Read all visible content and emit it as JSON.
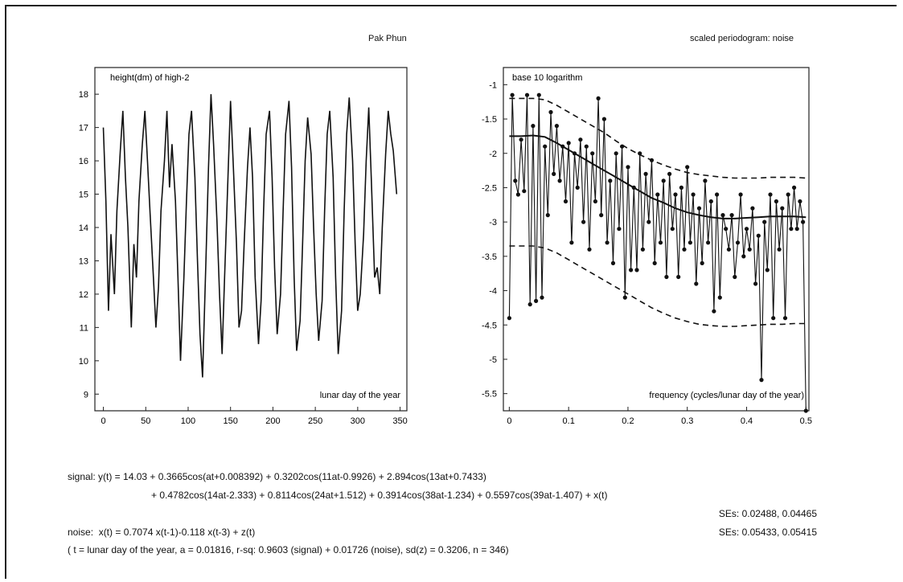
{
  "header": {
    "left_title": "Pak Phun",
    "right_title": "scaled periodogram: noise"
  },
  "chart_data": [
    {
      "type": "line",
      "inner_label": "height(dm) of high-2",
      "xlabel": "lunar day of the year",
      "ylabel": "",
      "xlim": [
        -10,
        358
      ],
      "ylim": [
        8.5,
        18.8
      ],
      "xticks": [
        0,
        50,
        100,
        150,
        200,
        250,
        300,
        350
      ],
      "yticks": [
        9,
        10,
        11,
        12,
        13,
        14,
        15,
        16,
        17,
        18
      ],
      "grid": false,
      "series": [
        {
          "x": [
            0,
            3,
            6,
            9,
            13,
            16,
            20,
            23,
            26,
            29,
            33,
            36,
            39,
            42,
            46,
            49,
            52,
            55,
            59,
            62,
            65,
            68,
            72,
            75,
            78,
            81,
            85,
            88,
            91,
            95,
            98,
            101,
            104,
            108,
            111,
            114,
            117,
            121,
            124,
            127,
            130,
            134,
            137,
            140,
            143,
            147,
            150,
            153,
            157,
            160,
            163,
            166,
            170,
            173,
            176,
            179,
            183,
            186,
            189,
            192,
            196,
            199,
            202,
            205,
            209,
            212,
            215,
            219,
            222,
            225,
            228,
            232,
            235,
            238,
            241,
            245,
            248,
            251,
            254,
            258,
            261,
            264,
            267,
            271,
            274,
            277,
            281,
            284,
            287,
            290,
            294,
            297,
            300,
            303,
            307,
            310,
            313,
            316,
            320,
            323,
            326,
            329,
            333,
            336,
            339,
            342,
            346
          ],
          "y": [
            17.0,
            14.8,
            11.5,
            13.8,
            12.0,
            14.5,
            16.3,
            17.5,
            15.5,
            14.0,
            11.0,
            13.5,
            12.5,
            14.8,
            16.5,
            17.5,
            16.0,
            14.5,
            12.5,
            11.0,
            12.2,
            14.5,
            16.0,
            17.5,
            15.2,
            16.5,
            14.8,
            12.5,
            10.0,
            12.5,
            14.8,
            16.8,
            17.5,
            15.5,
            13.0,
            10.8,
            9.5,
            13.0,
            15.8,
            18.0,
            16.5,
            14.2,
            12.0,
            10.2,
            12.5,
            15.5,
            17.8,
            16.0,
            13.5,
            11.0,
            11.5,
            13.5,
            15.8,
            17.0,
            15.5,
            12.5,
            10.5,
            11.8,
            14.5,
            16.8,
            17.5,
            15.5,
            12.8,
            10.8,
            12.0,
            14.5,
            16.8,
            17.8,
            15.8,
            12.5,
            10.3,
            11.2,
            13.5,
            16.0,
            17.3,
            16.2,
            14.0,
            12.0,
            10.6,
            11.8,
            14.5,
            16.8,
            17.5,
            15.5,
            12.5,
            10.2,
            11.5,
            14.5,
            16.8,
            17.9,
            16.0,
            13.5,
            11.5,
            12.0,
            13.8,
            16.0,
            17.6,
            15.5,
            12.5,
            12.8,
            12.0,
            14.0,
            16.2,
            17.5,
            16.8,
            16.3,
            15.0
          ]
        }
      ]
    },
    {
      "type": "line",
      "inner_label": "base 10 logarithm",
      "xlabel": "frequency (cycles/lunar day of the year)",
      "ylabel": "",
      "xlim": [
        -0.01,
        0.505
      ],
      "ylim": [
        -5.75,
        -0.75
      ],
      "xticks": [
        0,
        0.1,
        0.2,
        0.3,
        0.4,
        0.5
      ],
      "xtick_labels": [
        "0",
        "0.1",
        "0.2",
        "0.3",
        "0.4",
        "0.5"
      ],
      "yticks": [
        -1,
        -1.5,
        -2,
        -2.5,
        -3,
        -3.5,
        -4,
        -4.5,
        -5,
        -5.5
      ],
      "grid": false,
      "series": [
        {
          "style": "markers-line",
          "x": [
            0,
            0.005,
            0.01,
            0.015,
            0.02,
            0.025,
            0.03,
            0.035,
            0.04,
            0.045,
            0.05,
            0.055,
            0.06,
            0.065,
            0.07,
            0.075,
            0.08,
            0.085,
            0.09,
            0.095,
            0.1,
            0.105,
            0.11,
            0.115,
            0.12,
            0.125,
            0.13,
            0.135,
            0.14,
            0.145,
            0.15,
            0.155,
            0.16,
            0.165,
            0.17,
            0.175,
            0.18,
            0.185,
            0.19,
            0.195,
            0.2,
            0.205,
            0.21,
            0.215,
            0.22,
            0.225,
            0.23,
            0.235,
            0.24,
            0.245,
            0.25,
            0.255,
            0.26,
            0.265,
            0.27,
            0.275,
            0.28,
            0.285,
            0.29,
            0.295,
            0.3,
            0.305,
            0.31,
            0.315,
            0.32,
            0.325,
            0.33,
            0.335,
            0.34,
            0.345,
            0.35,
            0.355,
            0.36,
            0.365,
            0.37,
            0.375,
            0.38,
            0.385,
            0.39,
            0.395,
            0.4,
            0.405,
            0.41,
            0.415,
            0.42,
            0.425,
            0.43,
            0.435,
            0.44,
            0.445,
            0.45,
            0.455,
            0.46,
            0.465,
            0.47,
            0.475,
            0.48,
            0.485,
            0.49,
            0.495,
            0.5
          ],
          "y": [
            -4.4,
            -1.15,
            -2.4,
            -2.6,
            -1.8,
            -2.55,
            -1.15,
            -4.2,
            -1.6,
            -4.15,
            -1.15,
            -4.1,
            -1.9,
            -2.9,
            -1.4,
            -2.3,
            -1.6,
            -2.4,
            -1.9,
            -2.7,
            -1.85,
            -3.3,
            -2.0,
            -2.5,
            -1.8,
            -3.0,
            -1.9,
            -3.4,
            -2.0,
            -2.7,
            -1.2,
            -2.9,
            -1.5,
            -3.3,
            -2.4,
            -3.6,
            -2.0,
            -3.1,
            -1.9,
            -4.1,
            -2.2,
            -3.7,
            -2.5,
            -3.7,
            -2.0,
            -3.4,
            -2.3,
            -3.0,
            -2.1,
            -3.6,
            -2.6,
            -3.3,
            -2.4,
            -3.8,
            -2.3,
            -3.1,
            -2.6,
            -3.8,
            -2.5,
            -3.4,
            -2.2,
            -3.3,
            -2.6,
            -3.9,
            -2.8,
            -3.6,
            -2.4,
            -3.3,
            -2.7,
            -4.3,
            -2.6,
            -4.1,
            -2.9,
            -3.1,
            -3.4,
            -2.9,
            -3.8,
            -3.3,
            -2.6,
            -3.5,
            -3.1,
            -3.4,
            -2.8,
            -3.9,
            -3.2,
            -5.3,
            -3.0,
            -3.7,
            -2.6,
            -4.4,
            -2.7,
            -3.4,
            -2.8,
            -4.4,
            -2.6,
            -3.1,
            -2.5,
            -3.1,
            -2.7,
            -3.0,
            -5.75
          ]
        },
        {
          "style": "solid",
          "x": [
            0,
            0.02,
            0.04,
            0.06,
            0.08,
            0.1,
            0.12,
            0.14,
            0.16,
            0.18,
            0.2,
            0.22,
            0.24,
            0.26,
            0.28,
            0.3,
            0.32,
            0.34,
            0.36,
            0.38,
            0.4,
            0.42,
            0.44,
            0.46,
            0.48,
            0.5
          ],
          "y": [
            -1.75,
            -1.75,
            -1.74,
            -1.76,
            -1.85,
            -1.95,
            -2.05,
            -2.15,
            -2.25,
            -2.35,
            -2.45,
            -2.55,
            -2.65,
            -2.72,
            -2.8,
            -2.86,
            -2.9,
            -2.93,
            -2.95,
            -2.95,
            -2.94,
            -2.93,
            -2.92,
            -2.92,
            -2.92,
            -2.93
          ]
        },
        {
          "style": "dashed",
          "x": [
            0,
            0.02,
            0.04,
            0.06,
            0.08,
            0.1,
            0.12,
            0.14,
            0.16,
            0.18,
            0.2,
            0.22,
            0.24,
            0.26,
            0.28,
            0.3,
            0.32,
            0.34,
            0.36,
            0.38,
            0.4,
            0.42,
            0.44,
            0.46,
            0.48,
            0.5
          ],
          "y": [
            -1.2,
            -1.2,
            -1.2,
            -1.22,
            -1.3,
            -1.4,
            -1.5,
            -1.6,
            -1.7,
            -1.82,
            -1.93,
            -2.02,
            -2.1,
            -2.17,
            -2.23,
            -2.28,
            -2.31,
            -2.33,
            -2.35,
            -2.36,
            -2.36,
            -2.36,
            -2.35,
            -2.35,
            -2.35,
            -2.36
          ]
        },
        {
          "style": "dashed",
          "x": [
            0,
            0.02,
            0.04,
            0.06,
            0.08,
            0.1,
            0.12,
            0.14,
            0.16,
            0.18,
            0.2,
            0.22,
            0.24,
            0.26,
            0.28,
            0.3,
            0.32,
            0.34,
            0.36,
            0.38,
            0.4,
            0.42,
            0.44,
            0.46,
            0.48,
            0.5
          ],
          "y": [
            -3.35,
            -3.35,
            -3.35,
            -3.38,
            -3.45,
            -3.55,
            -3.65,
            -3.75,
            -3.85,
            -3.95,
            -4.05,
            -4.15,
            -4.25,
            -4.33,
            -4.4,
            -4.45,
            -4.49,
            -4.51,
            -4.52,
            -4.52,
            -4.51,
            -4.5,
            -4.49,
            -4.49,
            -4.48,
            -4.48
          ]
        }
      ]
    }
  ],
  "equations": {
    "signal_line1": "signal: y(t) = 14.03 + 0.3665cos(at+0.008392) + 0.3202cos(11at-0.9926) + 2.894cos(13at+0.7433)",
    "signal_line2": "+ 0.4782cos(14at-2.333) + 0.8114cos(24at+1.512) + 0.3914cos(38at-1.234) + 0.5597cos(39at-1.407) + x(t)",
    "signal_ses": "SEs: 0.02488, 0.04465",
    "noise_line": "noise:  x(t) = 0.7074 x(t-1)-0.118 x(t-3) + z(t)",
    "noise_ses": "SEs: 0.05433, 0.05415",
    "footnote": "( t = lunar day of the year, a = 0.01816, r-sq: 0.9603 (signal) + 0.01726 (noise), sd(z) = 0.3206, n = 346)"
  }
}
